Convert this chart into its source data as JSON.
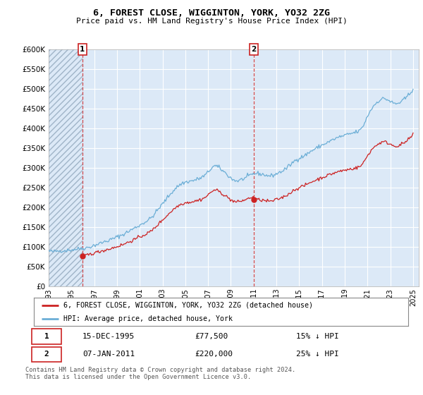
{
  "title": "6, FOREST CLOSE, WIGGINTON, YORK, YO32 2ZG",
  "subtitle": "Price paid vs. HM Land Registry's House Price Index (HPI)",
  "legend_line1": "6, FOREST CLOSE, WIGGINTON, YORK, YO32 2ZG (detached house)",
  "legend_line2": "HPI: Average price, detached house, York",
  "annotation1": {
    "label": "1",
    "date_str": "15-DEC-1995",
    "price": 77500,
    "note": "15% ↓ HPI"
  },
  "annotation2": {
    "label": "2",
    "date_str": "07-JAN-2011",
    "price": 220000,
    "note": "25% ↓ HPI"
  },
  "footer": "Contains HM Land Registry data © Crown copyright and database right 2024.\nThis data is licensed under the Open Government Licence v3.0.",
  "ylim": [
    0,
    600000
  ],
  "yticks": [
    0,
    50000,
    100000,
    150000,
    200000,
    250000,
    300000,
    350000,
    400000,
    450000,
    500000,
    550000,
    600000
  ],
  "background_color": "#dce9f7",
  "hatch_color": "#b8c8d8",
  "grid_color": "#ffffff",
  "hpi_color": "#6baed6",
  "price_color": "#cc2222",
  "sale1_x": 1995.958,
  "sale1_y": 77500,
  "sale2_x": 2011.017,
  "sale2_y": 220000,
  "xlim_left": 1993.0,
  "xlim_right": 2025.5
}
